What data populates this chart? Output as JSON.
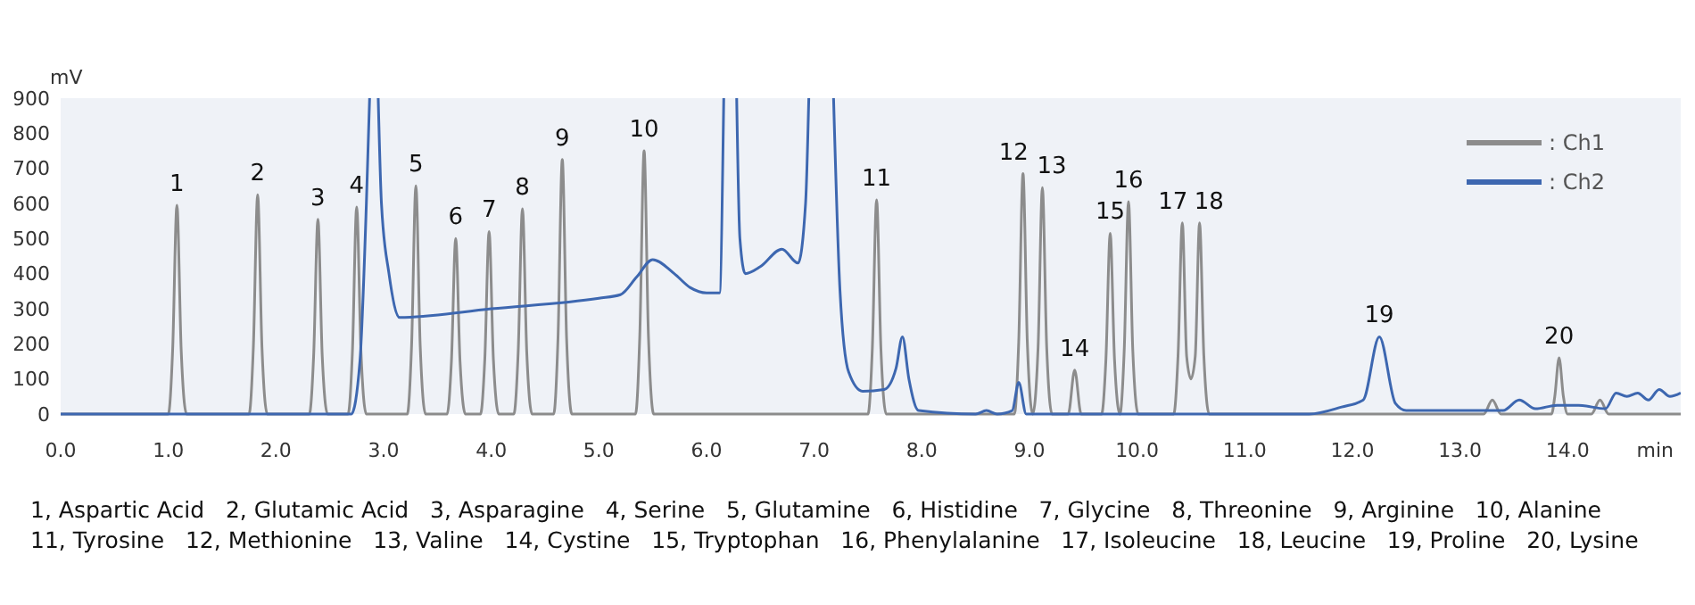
{
  "chart_data": {
    "type": "line",
    "ylabel": "mV",
    "xlabel": "min",
    "xlim": [
      0,
      15.05
    ],
    "xticks": [
      {
        "value": 0,
        "label": "0.0"
      },
      {
        "value": 1,
        "label": "1.0"
      },
      {
        "value": 2,
        "label": "2.0"
      },
      {
        "value": 3,
        "label": "3.0"
      },
      {
        "value": 4,
        "label": "4.0"
      },
      {
        "value": 5,
        "label": "5.0"
      },
      {
        "value": 6,
        "label": "6.0"
      },
      {
        "value": 7,
        "label": "7.0"
      },
      {
        "value": 8,
        "label": "8.0"
      },
      {
        "value": 9,
        "label": "9.0"
      },
      {
        "value": 10,
        "label": "10.0"
      },
      {
        "value": 11,
        "label": "11.0"
      },
      {
        "value": 12,
        "label": "12.0"
      },
      {
        "value": 13,
        "label": "13.0"
      },
      {
        "value": 14,
        "label": "14.0"
      }
    ],
    "ylim": [
      0,
      900
    ],
    "yticks": [
      0,
      100,
      200,
      300,
      400,
      500,
      600,
      700,
      800,
      900
    ],
    "grid": false,
    "legend": "top right",
    "marker": "none",
    "line_style": "solid",
    "series": [
      {
        "name": ": Ch1",
        "color": "#8c8c8c",
        "x": [
          0,
          1.0,
          1.04,
          1.08,
          1.12,
          1.17,
          1.75,
          1.79,
          1.83,
          1.87,
          1.92,
          2.31,
          2.35,
          2.39,
          2.43,
          2.48,
          2.67,
          2.71,
          2.75,
          2.79,
          2.84,
          3.22,
          3.26,
          3.3,
          3.34,
          3.39,
          3.59,
          3.63,
          3.67,
          3.71,
          3.76,
          3.9,
          3.94,
          3.98,
          4.02,
          4.07,
          4.21,
          4.25,
          4.29,
          4.33,
          4.38,
          4.58,
          4.62,
          4.66,
          4.7,
          4.75,
          5.34,
          5.38,
          5.42,
          5.46,
          5.51,
          7.5,
          7.54,
          7.58,
          7.62,
          7.67,
          8.86,
          8.9,
          8.94,
          8.98,
          9.03,
          9.08,
          9.12,
          9.16,
          9.21,
          9.36,
          9.42,
          9.48,
          9.67,
          9.71,
          9.75,
          9.79,
          9.84,
          9.88,
          9.92,
          9.96,
          10.01,
          10.34,
          10.38,
          10.42,
          10.46,
          10.5,
          10.54,
          10.58,
          10.62,
          10.67,
          13.22,
          13.3,
          13.38,
          13.85,
          13.88,
          13.92,
          13.96,
          14.0,
          14.22,
          14.3,
          14.38,
          15.05
        ],
        "values": [
          0,
          0,
          180,
          595,
          180,
          0,
          0,
          190,
          625,
          190,
          0,
          0,
          165,
          555,
          165,
          0,
          0,
          175,
          590,
          175,
          0,
          0,
          195,
          650,
          195,
          0,
          0,
          150,
          500,
          150,
          0,
          0,
          155,
          520,
          155,
          0,
          0,
          175,
          585,
          175,
          0,
          0,
          215,
          725,
          215,
          0,
          0,
          225,
          750,
          225,
          0,
          0,
          185,
          610,
          185,
          0,
          0,
          205,
          685,
          205,
          0,
          190,
          645,
          190,
          0,
          0,
          125,
          0,
          0,
          155,
          515,
          155,
          0,
          180,
          605,
          180,
          0,
          0,
          165,
          545,
          165,
          100,
          165,
          545,
          165,
          0,
          0,
          40,
          0,
          0,
          50,
          160,
          50,
          0,
          0,
          40,
          0,
          0
        ]
      },
      {
        "name": ": Ch2",
        "color": "#3d67b0",
        "x": [
          0,
          2.7,
          2.78,
          2.84,
          2.87,
          null,
          2.95,
          2.98,
          3.05,
          3.15,
          4.0,
          5.0,
          5.2,
          5.35,
          5.5,
          5.7,
          5.85,
          6.0,
          6.12,
          6.16,
          null,
          6.28,
          6.31,
          6.36,
          6.5,
          6.7,
          6.85,
          6.92,
          6.95,
          null,
          7.18,
          7.24,
          7.32,
          7.45,
          7.65,
          7.76,
          7.82,
          7.88,
          7.97,
          8.5,
          8.6,
          8.7,
          8.84,
          8.9,
          8.97,
          11.6,
          11.9,
          12.1,
          12.25,
          12.4,
          12.5,
          13.2,
          13.4,
          13.55,
          13.7,
          13.9,
          14.1,
          14.35,
          14.45,
          14.55,
          14.65,
          14.75,
          14.85,
          14.95,
          15.05
        ],
        "values": [
          0,
          0,
          150,
          600,
          900,
          null,
          900,
          600,
          400,
          275,
          300,
          330,
          340,
          390,
          440,
          400,
          360,
          345,
          345,
          900,
          null,
          900,
          500,
          400,
          420,
          470,
          430,
          600,
          900,
          null,
          900,
          350,
          120,
          65,
          70,
          130,
          220,
          100,
          10,
          0,
          10,
          0,
          10,
          90,
          0,
          0,
          20,
          40,
          220,
          30,
          10,
          10,
          10,
          40,
          15,
          25,
          25,
          15,
          60,
          50,
          60,
          40,
          70,
          50,
          60
        ]
      }
    ],
    "annotations": [
      {
        "text": "1",
        "x": 1.08,
        "y": 595
      },
      {
        "text": "2",
        "x": 1.83,
        "y": 625
      },
      {
        "text": "3",
        "x": 2.39,
        "y": 555
      },
      {
        "text": "4",
        "x": 2.75,
        "y": 590
      },
      {
        "text": "5",
        "x": 3.3,
        "y": 650
      },
      {
        "text": "6",
        "x": 3.67,
        "y": 500
      },
      {
        "text": "7",
        "x": 3.98,
        "y": 520
      },
      {
        "text": "8",
        "x": 4.29,
        "y": 585
      },
      {
        "text": "9",
        "x": 4.66,
        "y": 725
      },
      {
        "text": "10",
        "x": 5.42,
        "y": 750
      },
      {
        "text": "11",
        "x": 7.58,
        "y": 610
      },
      {
        "text": "12",
        "x": 8.94,
        "y": 685
      },
      {
        "text": "13",
        "x": 9.12,
        "y": 645
      },
      {
        "text": "14",
        "x": 9.42,
        "y": 125
      },
      {
        "text": "15",
        "x": 9.75,
        "y": 515
      },
      {
        "text": "16",
        "x": 9.92,
        "y": 605
      },
      {
        "text": "17",
        "x": 10.42,
        "y": 545
      },
      {
        "text": "18",
        "x": 10.58,
        "y": 545
      },
      {
        "text": "19",
        "x": 12.25,
        "y": 220
      },
      {
        "text": "20",
        "x": 13.92,
        "y": 160
      },
      "1, Aspartic Acid   2, Glutamic Acid   3, Asparagine   4, Serine   5, Glutamine   6, Histidine   7, Glycine   8, Threonine   9, Arginine   10, Alanine",
      "11, Tyrosine   12, Methionine   13, Valine   14, Cystine   15, Tryptophan   16, Phenylalanine   17, Isoleucine   18, Leucine   19, Proline   20, Lysine"
    ]
  }
}
